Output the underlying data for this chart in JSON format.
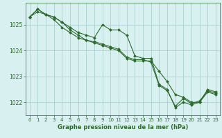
{
  "background_color": "#d8f0f0",
  "grid_color": "#aad0d0",
  "line_color": "#2d6a2d",
  "marker_color": "#2d6a2d",
  "title": "Graphe pression niveau de la mer (hPa)",
  "title_color": "#2d6a2d",
  "xlim": [
    -0.5,
    23.5
  ],
  "ylim": [
    1021.5,
    1025.85
  ],
  "yticks": [
    1022,
    1023,
    1024,
    1025
  ],
  "xticks": [
    0,
    1,
    2,
    3,
    4,
    5,
    6,
    7,
    8,
    9,
    10,
    11,
    12,
    13,
    14,
    15,
    16,
    17,
    18,
    19,
    20,
    21,
    22,
    23
  ],
  "series": [
    [
      1025.3,
      1025.6,
      1025.4,
      1025.3,
      1025.1,
      1024.9,
      1024.7,
      1024.6,
      1024.5,
      1025.0,
      1024.8,
      1024.8,
      1024.6,
      1023.8,
      1023.7,
      1023.7,
      1022.7,
      1022.5,
      1021.8,
      1022.0,
      1021.9,
      1022.0,
      1022.5,
      1022.4
    ],
    [
      1025.3,
      1025.6,
      1025.4,
      1025.3,
      1025.1,
      1024.8,
      1024.6,
      1024.4,
      1024.3,
      1024.2,
      1024.1,
      1024.0,
      1023.7,
      1023.6,
      1023.6,
      1023.6,
      1023.2,
      1022.8,
      1022.3,
      1022.2,
      1022.0,
      1022.0,
      1022.4,
      1022.3
    ],
    [
      1025.3,
      1025.5,
      1025.4,
      1025.2,
      1024.9,
      1024.7,
      1024.5,
      1024.4,
      1024.35,
      1024.25,
      1024.15,
      1024.05,
      1023.75,
      1023.65,
      1023.65,
      1023.55,
      1022.65,
      1022.45,
      1021.85,
      1022.15,
      1021.95,
      1022.05,
      1022.45,
      1022.35
    ]
  ],
  "tick_fontsize": 5,
  "label_fontsize": 6,
  "linewidth": 0.8,
  "markersize": 2.0
}
